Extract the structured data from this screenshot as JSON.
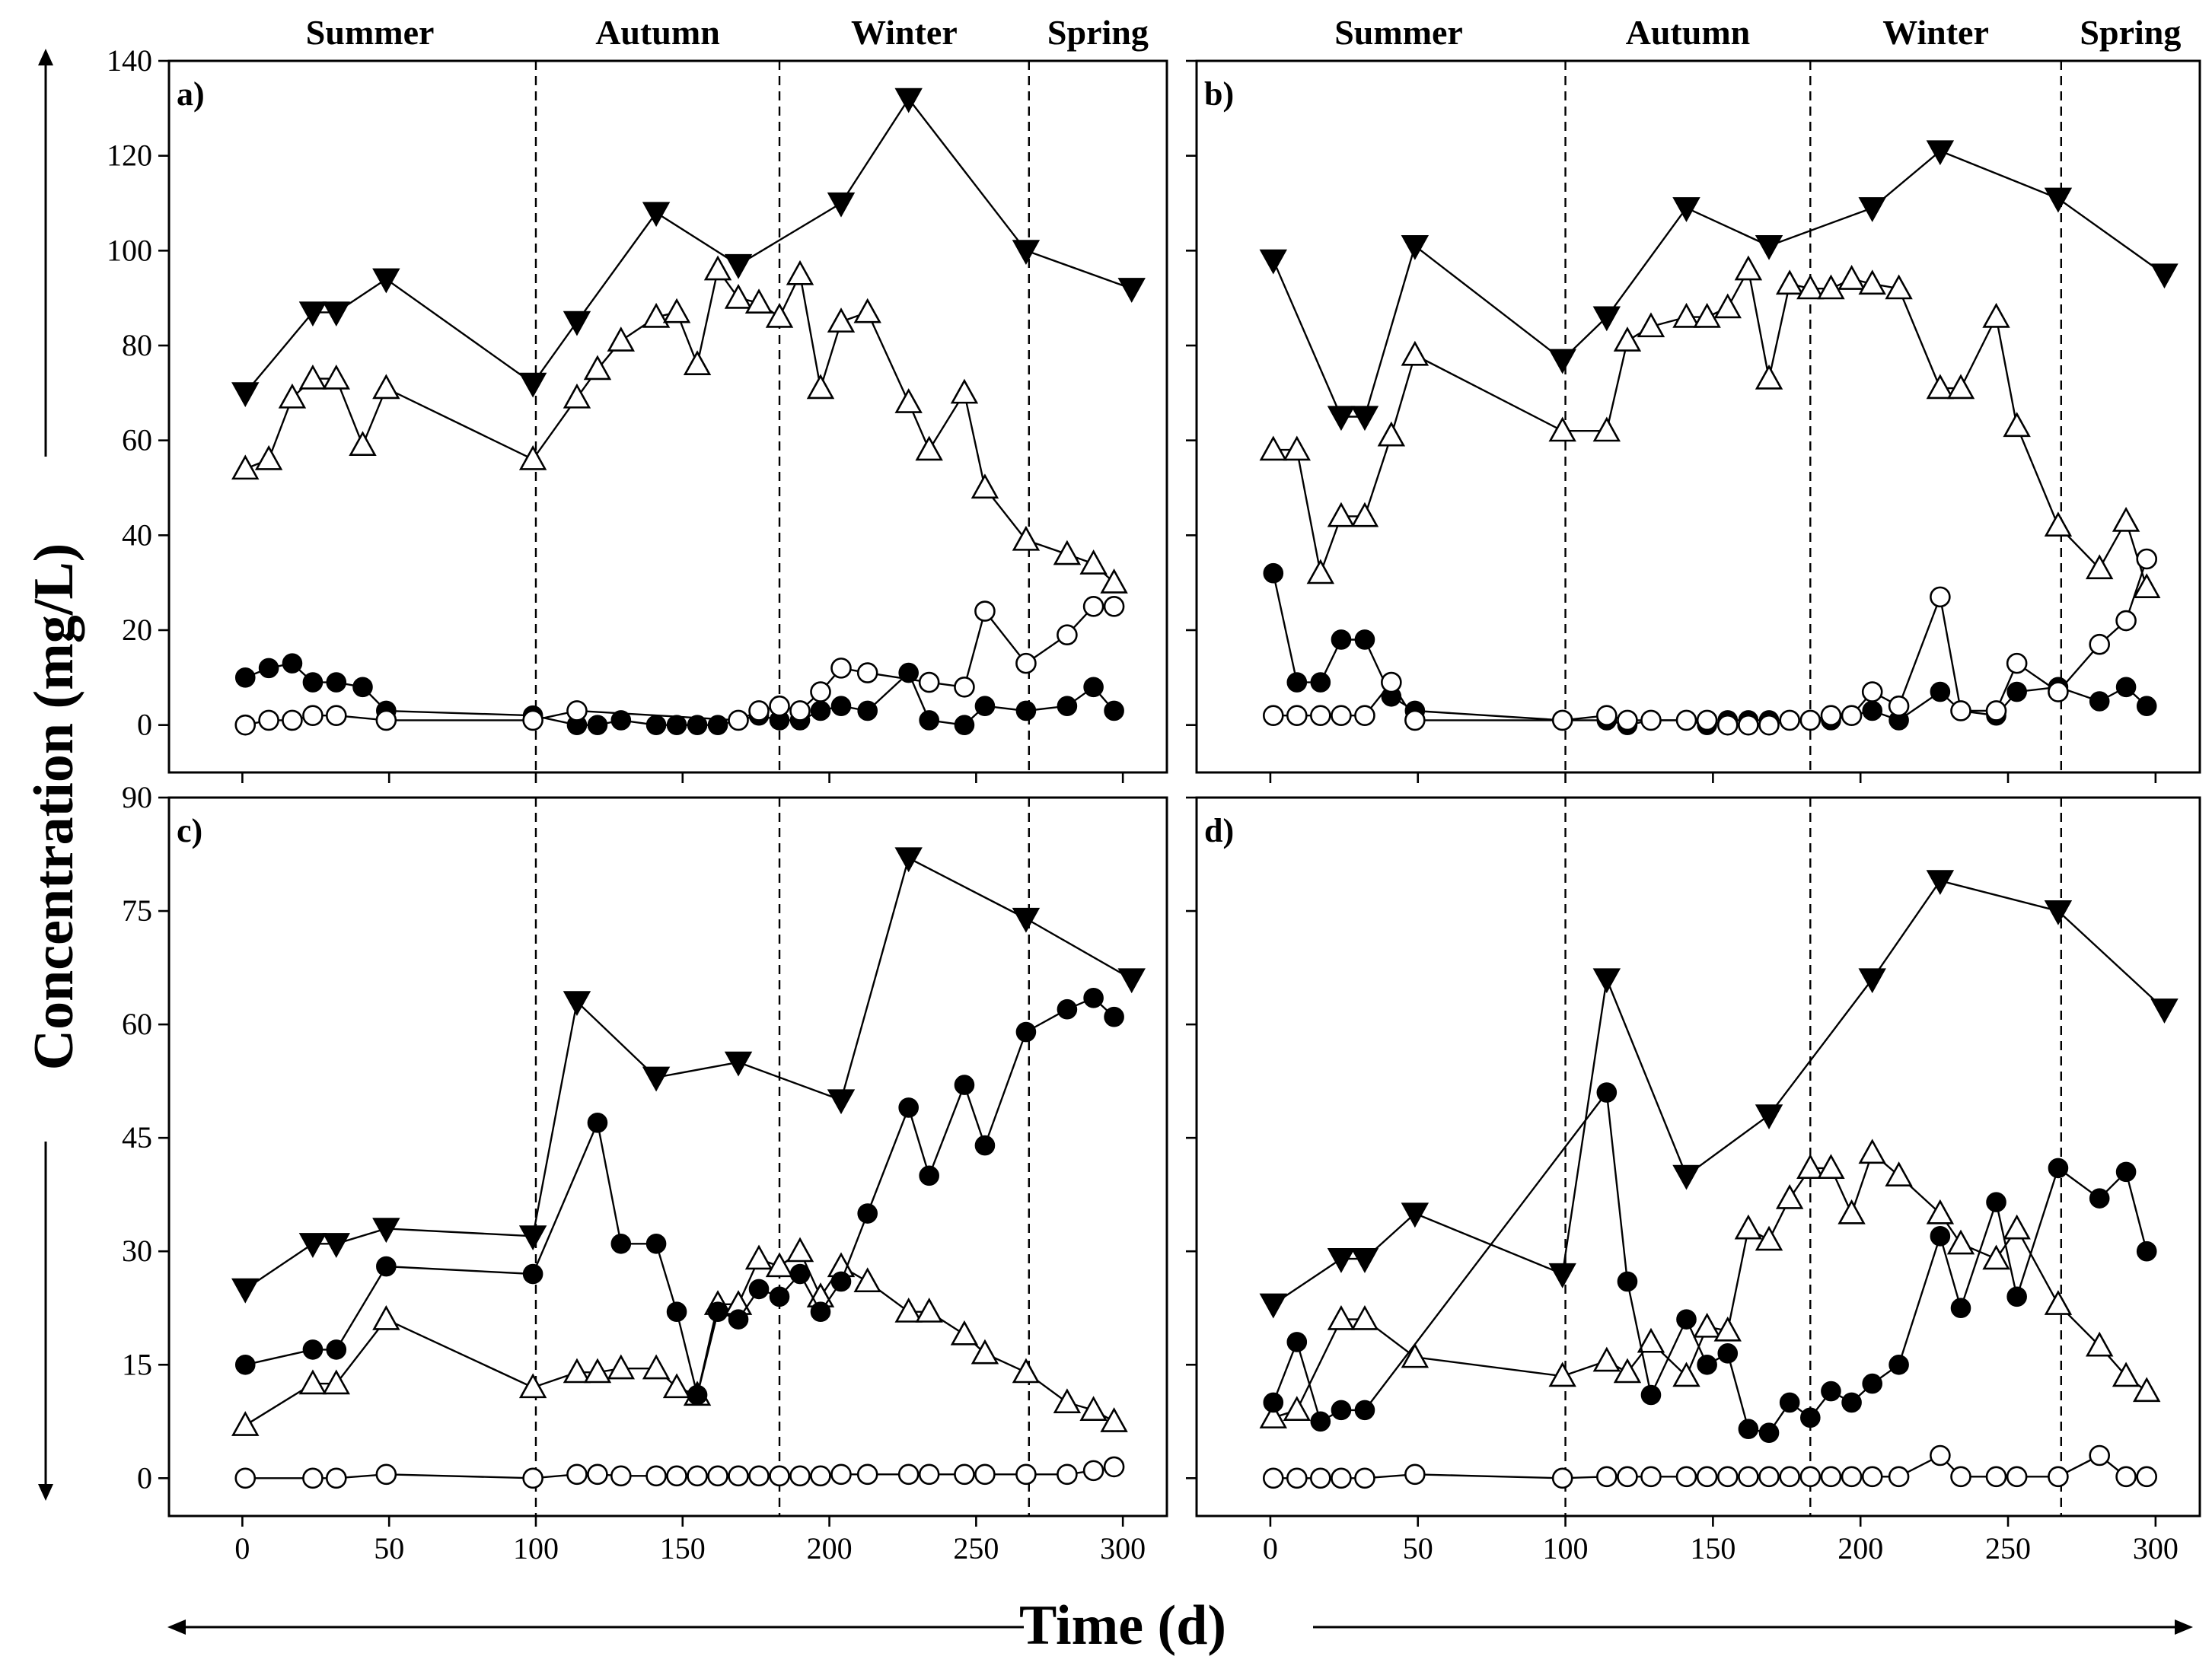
{
  "figure": {
    "xlabel": "Time (d)",
    "ylabel": "Concentration (mg/L)",
    "seasons": [
      "Summer",
      "Autumn",
      "Winter",
      "Spring"
    ],
    "season_boundaries": [
      100,
      183,
      268
    ]
  },
  "chart_data": [
    {
      "type": "line",
      "panel_label": "a)",
      "xlim": [
        -25,
        315
      ],
      "ylim": [
        -10,
        140
      ],
      "xticks": [
        0,
        50,
        100,
        150,
        200,
        250,
        300
      ],
      "yticks": [
        0,
        20,
        40,
        60,
        80,
        100,
        120,
        140
      ],
      "series": [
        {
          "name": "filled-down-triangle",
          "marker": "tri-down-filled",
          "x": [
            1,
            24,
            32,
            49,
            99,
            114,
            141,
            169,
            204,
            227,
            267,
            303
          ],
          "y": [
            70,
            87,
            87,
            94,
            72,
            85,
            108,
            97,
            110,
            132,
            100,
            92
          ]
        },
        {
          "name": "open-up-triangle",
          "marker": "tri-up-open",
          "x": [
            1,
            9,
            17,
            24,
            32,
            41,
            49,
            99,
            114,
            121,
            129,
            141,
            148,
            155,
            162,
            169,
            176,
            183,
            190,
            197,
            204,
            213,
            227,
            234,
            246,
            253,
            267,
            281,
            290,
            297
          ],
          "y": [
            54,
            56,
            69,
            73,
            73,
            59,
            71,
            56,
            69,
            75,
            81,
            86,
            87,
            76,
            96,
            90,
            89,
            86,
            95,
            71,
            85,
            87,
            68,
            58,
            70,
            50,
            39,
            36,
            34,
            30
          ]
        },
        {
          "name": "filled-circle",
          "marker": "circle-filled",
          "x": [
            1,
            9,
            17,
            24,
            32,
            41,
            49,
            99,
            114,
            121,
            129,
            141,
            148,
            155,
            162,
            169,
            176,
            183,
            190,
            197,
            204,
            213,
            227,
            234,
            246,
            253,
            267,
            281,
            290,
            297
          ],
          "y": [
            10,
            12,
            13,
            9,
            9,
            8,
            3,
            2,
            0,
            0,
            1,
            0,
            0,
            0,
            0,
            1,
            2,
            1,
            1,
            3,
            4,
            3,
            11,
            1,
            0,
            4,
            3,
            4,
            8,
            3
          ]
        },
        {
          "name": "open-circle",
          "marker": "circle-open",
          "x": [
            1,
            9,
            17,
            24,
            32,
            49,
            99,
            114,
            169,
            176,
            183,
            190,
            197,
            204,
            213,
            234,
            246,
            253,
            267,
            281,
            290,
            297
          ],
          "y": [
            0,
            1,
            1,
            2,
            2,
            1,
            1,
            3,
            1,
            3,
            4,
            3,
            7,
            12,
            11,
            9,
            8,
            24,
            13,
            19,
            25,
            25
          ]
        }
      ]
    },
    {
      "type": "line",
      "panel_label": "b)",
      "xlim": [
        -25,
        315
      ],
      "ylim": [
        -10,
        140
      ],
      "xticks": [
        0,
        50,
        100,
        150,
        200,
        250,
        300
      ],
      "yticks": [
        0,
        20,
        40,
        60,
        80,
        100,
        120,
        140
      ],
      "series": [
        {
          "name": "filled-down-triangle",
          "marker": "tri-down-filled",
          "x": [
            1,
            24,
            32,
            49,
            99,
            114,
            141,
            169,
            204,
            227,
            267,
            303
          ],
          "y": [
            98,
            65,
            65,
            101,
            77,
            86,
            109,
            101,
            109,
            121,
            111,
            95
          ]
        },
        {
          "name": "open-up-triangle",
          "marker": "tri-up-open",
          "x": [
            1,
            9,
            17,
            24,
            32,
            41,
            49,
            99,
            114,
            121,
            129,
            141,
            148,
            155,
            162,
            169,
            176,
            183,
            190,
            197,
            204,
            213,
            227,
            234,
            246,
            253,
            267,
            281,
            290,
            297
          ],
          "y": [
            58,
            58,
            32,
            44,
            44,
            61,
            78,
            62,
            62,
            81,
            84,
            86,
            86,
            88,
            96,
            73,
            93,
            92,
            92,
            94,
            93,
            92,
            71,
            71,
            86,
            63,
            42,
            33,
            43,
            29
          ]
        },
        {
          "name": "filled-circle",
          "marker": "circle-filled",
          "x": [
            1,
            9,
            17,
            24,
            32,
            41,
            49,
            99,
            114,
            121,
            129,
            141,
            148,
            155,
            162,
            169,
            176,
            183,
            190,
            197,
            204,
            213,
            227,
            234,
            246,
            253,
            267,
            281,
            290,
            297
          ],
          "y": [
            32,
            9,
            9,
            18,
            18,
            6,
            3,
            1,
            1,
            0,
            1,
            1,
            0,
            1,
            1,
            1,
            1,
            1,
            1,
            2,
            3,
            1,
            7,
            3,
            2,
            7,
            8,
            5,
            8,
            4
          ]
        },
        {
          "name": "open-circle",
          "marker": "circle-open",
          "x": [
            1,
            9,
            17,
            24,
            32,
            41,
            49,
            99,
            114,
            121,
            129,
            141,
            148,
            155,
            162,
            169,
            176,
            183,
            190,
            197,
            204,
            213,
            227,
            234,
            246,
            253,
            267,
            281,
            290,
            297
          ],
          "y": [
            2,
            2,
            2,
            2,
            2,
            9,
            1,
            1,
            2,
            1,
            1,
            1,
            1,
            0,
            0,
            0,
            1,
            1,
            2,
            2,
            7,
            4,
            27,
            3,
            3,
            13,
            7,
            17,
            22,
            35
          ]
        }
      ]
    },
    {
      "type": "line",
      "panel_label": "c)",
      "xlim": [
        -25,
        315
      ],
      "ylim": [
        -5,
        90
      ],
      "xticks": [
        0,
        50,
        100,
        150,
        200,
        250,
        300
      ],
      "yticks": [
        0,
        15,
        30,
        45,
        60,
        75,
        90
      ],
      "series": [
        {
          "name": "filled-down-triangle",
          "marker": "tri-down-filled",
          "x": [
            1,
            24,
            32,
            49,
            99,
            114,
            141,
            169,
            204,
            227,
            267,
            303
          ],
          "y": [
            25,
            31,
            31,
            33,
            32,
            63,
            53,
            55,
            50,
            82,
            74,
            66
          ]
        },
        {
          "name": "open-up-triangle",
          "marker": "tri-up-open",
          "x": [
            1,
            24,
            32,
            49,
            99,
            114,
            121,
            129,
            141,
            148,
            155,
            162,
            169,
            176,
            183,
            190,
            197,
            204,
            213,
            227,
            234,
            246,
            253,
            267,
            281,
            290,
            297
          ],
          "y": [
            7,
            12.5,
            12.5,
            21,
            12,
            14,
            14,
            14.5,
            14.5,
            12,
            11,
            23,
            23,
            29,
            28,
            30,
            24,
            28,
            26,
            22,
            22,
            19,
            16.5,
            14,
            10,
            9,
            7.5
          ]
        },
        {
          "name": "filled-circle",
          "marker": "circle-filled",
          "x": [
            1,
            24,
            32,
            49,
            99,
            121,
            129,
            141,
            148,
            155,
            162,
            169,
            176,
            183,
            190,
            197,
            204,
            213,
            227,
            234,
            246,
            253,
            267,
            281,
            290,
            297
          ],
          "y": [
            15,
            17,
            17,
            28,
            27,
            47,
            31,
            31,
            22,
            11,
            22,
            21,
            25,
            24,
            27,
            22,
            26,
            35,
            49,
            40,
            52,
            44,
            59,
            62,
            63.5,
            61
          ]
        },
        {
          "name": "open-circle",
          "marker": "circle-open",
          "x": [
            1,
            24,
            32,
            49,
            99,
            114,
            121,
            129,
            141,
            148,
            155,
            162,
            169,
            176,
            183,
            190,
            197,
            204,
            213,
            227,
            234,
            246,
            253,
            267,
            281,
            290,
            297
          ],
          "y": [
            0,
            0,
            0,
            0.5,
            0,
            0.5,
            0.5,
            0.3,
            0.3,
            0.3,
            0.3,
            0.3,
            0.3,
            0.3,
            0.3,
            0.3,
            0.3,
            0.5,
            0.5,
            0.5,
            0.5,
            0.5,
            0.5,
            0.5,
            0.5,
            1,
            1.5
          ]
        }
      ]
    },
    {
      "type": "line",
      "panel_label": "d)",
      "xlim": [
        -25,
        315
      ],
      "ylim": [
        -5,
        90
      ],
      "xticks": [
        0,
        50,
        100,
        150,
        200,
        250,
        300
      ],
      "yticks": [
        0,
        15,
        30,
        45,
        60,
        75,
        90
      ],
      "series": [
        {
          "name": "filled-down-triangle",
          "marker": "tri-down-filled",
          "x": [
            1,
            24,
            32,
            49,
            99,
            114,
            141,
            169,
            204,
            227,
            267,
            303
          ],
          "y": [
            23,
            29,
            29,
            35,
            27,
            66,
            40,
            48,
            66,
            79,
            75,
            62
          ]
        },
        {
          "name": "open-up-triangle",
          "marker": "tri-up-open",
          "x": [
            1,
            9,
            24,
            32,
            49,
            99,
            114,
            121,
            129,
            141,
            148,
            155,
            162,
            169,
            176,
            183,
            190,
            197,
            204,
            213,
            227,
            234,
            246,
            253,
            267,
            281,
            290,
            297
          ],
          "y": [
            8,
            9,
            21,
            21,
            16,
            13.5,
            15.5,
            14,
            18,
            13.5,
            20,
            19.5,
            33,
            31.5,
            37,
            41,
            41,
            35,
            43,
            40,
            35,
            31,
            29,
            33,
            23,
            17.5,
            13.5,
            11.5
          ]
        },
        {
          "name": "filled-circle",
          "marker": "circle-filled",
          "x": [
            1,
            9,
            17,
            24,
            32,
            114,
            121,
            129,
            141,
            148,
            155,
            162,
            169,
            176,
            183,
            190,
            197,
            204,
            213,
            227,
            234,
            246,
            253,
            267,
            281,
            290,
            297
          ],
          "y": [
            10,
            18,
            7.5,
            9,
            9,
            51,
            26,
            11,
            21,
            15,
            16.5,
            6.5,
            6,
            10,
            8,
            11.5,
            10,
            12.5,
            15,
            32,
            22.5,
            36.5,
            24,
            41,
            37,
            40.5,
            30
          ]
        },
        {
          "name": "open-circle",
          "marker": "circle-open",
          "x": [
            1,
            9,
            17,
            24,
            32,
            49,
            99,
            114,
            121,
            129,
            141,
            148,
            155,
            162,
            169,
            176,
            183,
            190,
            197,
            204,
            213,
            227,
            234,
            246,
            253,
            267,
            281,
            290,
            297
          ],
          "y": [
            0,
            0,
            0,
            0,
            0,
            0.5,
            0,
            0.2,
            0.2,
            0.2,
            0.2,
            0.2,
            0.2,
            0.2,
            0.2,
            0.2,
            0.2,
            0.2,
            0.2,
            0.2,
            0.2,
            3,
            0.2,
            0.2,
            0.2,
            0.2,
            3,
            0.2,
            0.2
          ]
        }
      ]
    }
  ]
}
